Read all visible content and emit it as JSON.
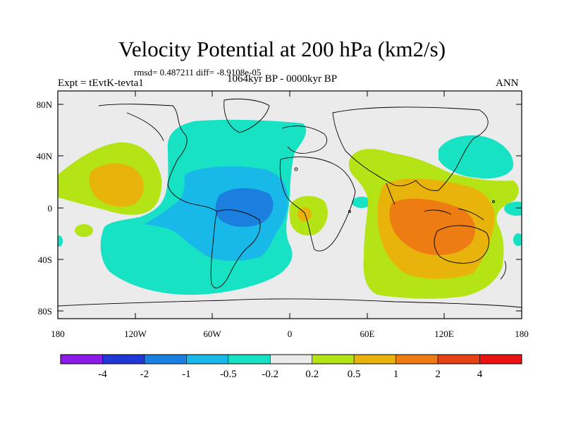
{
  "header": {
    "title": "Velocity Potential at 200 hPa (km2/s)",
    "stats": "rmsd= 0.487211  diff= -8.9108e-05",
    "experiment": "Expt = tEvtK-tevta1",
    "period": "1064kyr BP - 0000kyr BP",
    "season": "ANN"
  },
  "axes": {
    "lat_labels": [
      "80N",
      "40N",
      "0",
      "40S",
      "80S"
    ],
    "lon_labels": [
      "180",
      "120W",
      "60W",
      "0",
      "60E",
      "120E",
      "180"
    ]
  },
  "colorbar": {
    "levels": [
      "-4",
      "-2",
      "-1",
      "-0.5",
      "-0.2",
      "0.2",
      "0.5",
      "1",
      "2",
      "4"
    ],
    "colors": [
      "#8b1ce8",
      "#2138d6",
      "#1b7fe0",
      "#18b8e8",
      "#18e2c4",
      "#ebebeb",
      "#b4e316",
      "#e8b30b",
      "#ed7c12",
      "#e74213",
      "#ea1212"
    ]
  },
  "field_colors": {
    "neutral": "#ebebeb",
    "neg_weak": "#18e2c4",
    "neg_mod": "#18b8e8",
    "neg_strong": "#1b7fe0",
    "pos_weak": "#b4e316",
    "pos_mod": "#e8b30b",
    "pos_strong": "#ed7c12"
  }
}
